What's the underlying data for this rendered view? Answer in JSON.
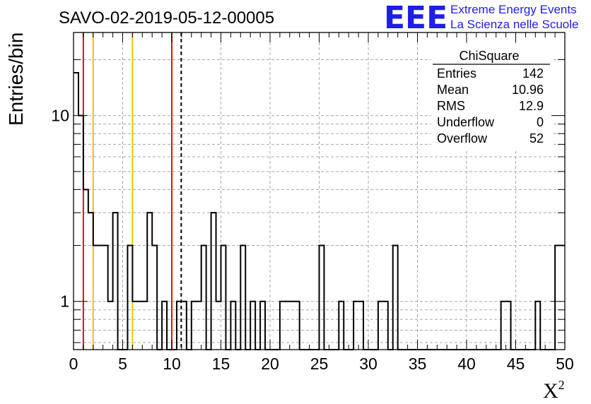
{
  "chart_data": {
    "type": "histogram",
    "title": "SAVO-02-2019-05-12-00005",
    "xlabel": "X",
    "xlabel_superscript": "2",
    "ylabel": "Entries/bin",
    "xlim": [
      0,
      50
    ],
    "ylim": [
      0.55,
      28
    ],
    "yscale": "log",
    "grid": true,
    "bin_width": 0.5,
    "x_ticks": [
      "0",
      "5",
      "10",
      "15",
      "20",
      "25",
      "30",
      "35",
      "40",
      "45",
      "50"
    ],
    "y_ticks": [
      "1",
      "10"
    ],
    "bins": [
      {
        "x0": 0.0,
        "x1": 0.5,
        "count": 17
      },
      {
        "x0": 0.5,
        "x1": 1.0,
        "count": 10
      },
      {
        "x0": 1.0,
        "x1": 1.5,
        "count": 4
      },
      {
        "x0": 1.5,
        "x1": 2.0,
        "count": 3
      },
      {
        "x0": 2.0,
        "x1": 3.5,
        "count": 2
      },
      {
        "x0": 3.5,
        "x1": 4.0,
        "count": 1
      },
      {
        "x0": 4.0,
        "x1": 4.5,
        "count": 3
      },
      {
        "x0": 5.5,
        "x1": 6.0,
        "count": 2
      },
      {
        "x0": 6.0,
        "x1": 7.5,
        "count": 1
      },
      {
        "x0": 7.5,
        "x1": 8.0,
        "count": 3
      },
      {
        "x0": 8.0,
        "x1": 8.5,
        "count": 2
      },
      {
        "x0": 9.0,
        "x1": 9.5,
        "count": 1
      },
      {
        "x0": 10.5,
        "x1": 11.5,
        "count": 1
      },
      {
        "x0": 12.0,
        "x1": 13.0,
        "count": 1
      },
      {
        "x0": 13.0,
        "x1": 13.5,
        "count": 2
      },
      {
        "x0": 14.0,
        "x1": 14.5,
        "count": 3
      },
      {
        "x0": 14.5,
        "x1": 15.0,
        "count": 1
      },
      {
        "x0": 15.0,
        "x1": 15.5,
        "count": 2
      },
      {
        "x0": 16.0,
        "x1": 16.5,
        "count": 1
      },
      {
        "x0": 17.0,
        "x1": 17.5,
        "count": 2
      },
      {
        "x0": 18.0,
        "x1": 18.5,
        "count": 1
      },
      {
        "x0": 19.0,
        "x1": 19.5,
        "count": 1
      },
      {
        "x0": 21.0,
        "x1": 23.0,
        "count": 1
      },
      {
        "x0": 25.0,
        "x1": 25.5,
        "count": 2
      },
      {
        "x0": 27.0,
        "x1": 27.5,
        "count": 1
      },
      {
        "x0": 28.5,
        "x1": 29.5,
        "count": 1
      },
      {
        "x0": 31.0,
        "x1": 32.0,
        "count": 1
      },
      {
        "x0": 32.5,
        "x1": 33.0,
        "count": 2
      },
      {
        "x0": 43.5,
        "x1": 44.5,
        "count": 1
      },
      {
        "x0": 47.0,
        "x1": 47.5,
        "count": 1
      },
      {
        "x0": 49.0,
        "x1": 50.0,
        "count": 2
      }
    ],
    "vertical_lines": [
      {
        "x": 1.0,
        "color": "#dd1111",
        "style": "solid"
      },
      {
        "x": 2.0,
        "color": "#f2c200",
        "style": "solid"
      },
      {
        "x": 6.0,
        "color": "#f2c200",
        "style": "solid"
      },
      {
        "x": 10.0,
        "color": "#dd1111",
        "style": "solid"
      },
      {
        "x": 10.96,
        "color": "#000000",
        "style": "dashed"
      }
    ],
    "stats_box": {
      "title": "ChiSquare",
      "rows": [
        {
          "label": "Entries",
          "value": "142"
        },
        {
          "label": "Mean",
          "value": "10.96"
        },
        {
          "label": "RMS",
          "value": "12.9"
        },
        {
          "label": "Underflow",
          "value": "0"
        },
        {
          "label": "Overflow",
          "value": "52"
        }
      ]
    }
  },
  "logo": {
    "mark": "EEE",
    "line1": "Extreme Energy Events",
    "line2": "La Scienza nelle Scuole",
    "color": "#1e1ee8"
  }
}
